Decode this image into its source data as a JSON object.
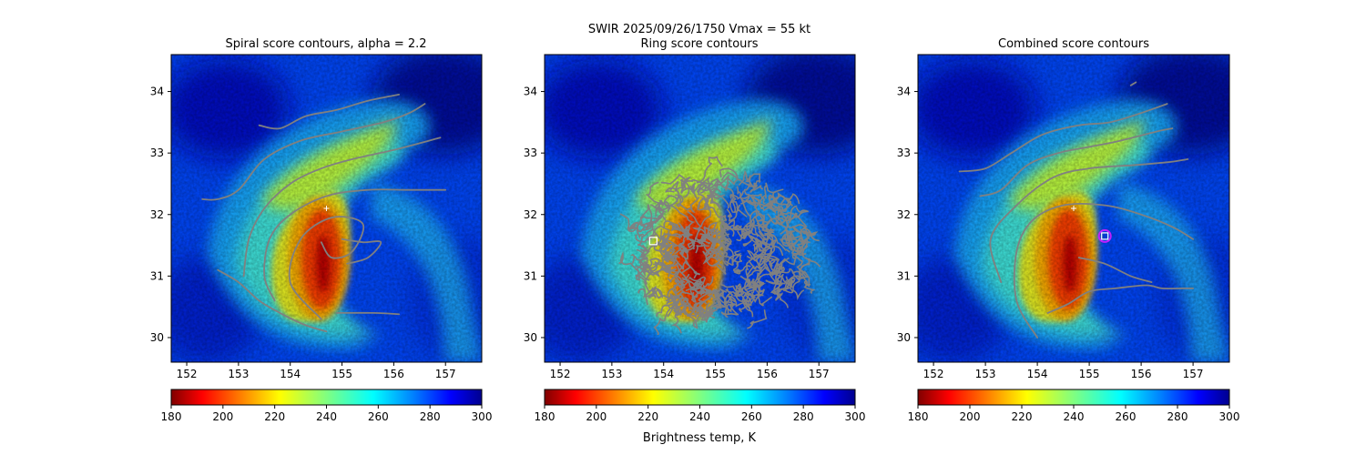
{
  "suptitle": {
    "line1": "SWIR  2025/09/26/1750    Vmax = 55 kt",
    "line2": "Ring score contours"
  },
  "colorbar": {
    "label": "Brightness temp, K",
    "ticks": [
      180,
      200,
      220,
      240,
      260,
      280,
      300
    ],
    "range": [
      180,
      300
    ],
    "colormap": "jet_r"
  },
  "chart_data": [
    {
      "type": "heatmap",
      "title": "Spiral score contours, alpha =  2.2",
      "xlim": [
        151.7,
        157.7
      ],
      "ylim": [
        29.6,
        34.6
      ],
      "xticks": [
        152,
        153,
        154,
        155,
        156,
        157
      ],
      "yticks": [
        30,
        31,
        32,
        33,
        34
      ],
      "grid": false,
      "contour_color": "#808080",
      "marker": {
        "type": "plus",
        "x": 154.7,
        "y": 32.1,
        "color": "#ffffff"
      },
      "contours": [
        [
          [
            153.4,
            33.45
          ],
          [
            153.8,
            33.4
          ],
          [
            154.3,
            33.6
          ],
          [
            154.9,
            33.7
          ],
          [
            155.5,
            33.85
          ],
          [
            156.1,
            33.95
          ]
        ],
        [
          [
            152.3,
            32.25
          ],
          [
            152.6,
            32.25
          ],
          [
            153.0,
            32.4
          ],
          [
            153.5,
            32.9
          ],
          [
            154.2,
            33.2
          ],
          [
            155.0,
            33.35
          ],
          [
            155.8,
            33.5
          ],
          [
            156.3,
            33.65
          ],
          [
            156.6,
            33.8
          ]
        ],
        [
          [
            153.1,
            31.0
          ],
          [
            153.2,
            31.6
          ],
          [
            153.5,
            32.1
          ],
          [
            154.0,
            32.5
          ],
          [
            154.6,
            32.75
          ],
          [
            155.2,
            32.9
          ],
          [
            156.0,
            33.05
          ],
          [
            156.9,
            33.25
          ]
        ],
        [
          [
            153.7,
            30.6
          ],
          [
            153.5,
            31.0
          ],
          [
            153.6,
            31.6
          ],
          [
            154.0,
            32.0
          ],
          [
            154.7,
            32.3
          ],
          [
            155.5,
            32.4
          ],
          [
            156.3,
            32.4
          ],
          [
            157.0,
            32.4
          ]
        ],
        [
          [
            154.6,
            30.3
          ],
          [
            154.0,
            30.9
          ],
          [
            154.2,
            31.6
          ],
          [
            154.8,
            31.95
          ],
          [
            155.4,
            31.85
          ],
          [
            155.2,
            31.4
          ],
          [
            154.8,
            31.3
          ],
          [
            154.6,
            31.55
          ]
        ],
        [
          [
            155.0,
            31.6
          ],
          [
            155.4,
            31.55
          ],
          [
            155.75,
            31.55
          ],
          [
            155.5,
            31.3
          ],
          [
            155.1,
            31.2
          ]
        ],
        [
          [
            152.6,
            31.1
          ],
          [
            153.0,
            30.9
          ],
          [
            153.4,
            30.6
          ],
          [
            153.8,
            30.4
          ],
          [
            154.3,
            30.2
          ],
          [
            154.7,
            30.1
          ]
        ],
        [
          [
            154.9,
            30.4
          ],
          [
            155.6,
            30.4
          ],
          [
            156.1,
            30.38
          ]
        ]
      ]
    },
    {
      "type": "heatmap",
      "title": "Ring score contours",
      "xlim": [
        151.7,
        157.7
      ],
      "ylim": [
        29.6,
        34.6
      ],
      "xticks": [
        152,
        153,
        154,
        155,
        156,
        157
      ],
      "yticks": [
        30,
        31,
        32,
        33,
        34
      ],
      "grid": false,
      "contour_color": "#808080",
      "marker": {
        "type": "square",
        "x": 153.8,
        "y": 31.57,
        "color": "#ffffff"
      },
      "ring_region": {
        "cx": 155.1,
        "cy": 31.45,
        "rx": 3.5,
        "ry": 1.15
      }
    },
    {
      "type": "heatmap",
      "title": "Combined score contours",
      "xlim": [
        151.7,
        157.7
      ],
      "ylim": [
        29.6,
        34.6
      ],
      "xticks": [
        152,
        153,
        154,
        155,
        156,
        157
      ],
      "yticks": [
        30,
        31,
        32,
        33,
        34
      ],
      "grid": false,
      "contour_color": "#808080",
      "marker": {
        "type": "plus",
        "x": 154.7,
        "y": 32.1,
        "color": "#ffffff"
      },
      "center_marker": {
        "type": "square-in-circle",
        "x": 155.3,
        "y": 31.65,
        "circle_color": "#c020ff",
        "square_color": "#ffffff"
      },
      "contours": [
        [
          [
            155.8,
            34.1
          ],
          [
            155.9,
            34.15
          ]
        ],
        [
          [
            152.5,
            32.7
          ],
          [
            153.0,
            32.75
          ],
          [
            153.5,
            33.0
          ],
          [
            154.1,
            33.3
          ],
          [
            154.8,
            33.45
          ],
          [
            155.4,
            33.5
          ],
          [
            156.0,
            33.65
          ],
          [
            156.5,
            33.8
          ]
        ],
        [
          [
            152.9,
            32.3
          ],
          [
            153.3,
            32.4
          ],
          [
            153.8,
            32.8
          ],
          [
            154.4,
            33.0
          ],
          [
            155.0,
            33.1
          ],
          [
            155.6,
            33.2
          ],
          [
            156.3,
            33.35
          ],
          [
            156.6,
            33.4
          ]
        ],
        [
          [
            153.3,
            30.9
          ],
          [
            153.1,
            31.6
          ],
          [
            153.6,
            32.15
          ],
          [
            154.3,
            32.6
          ],
          [
            155.0,
            32.75
          ],
          [
            155.8,
            32.8
          ],
          [
            156.5,
            32.85
          ],
          [
            156.9,
            32.9
          ]
        ],
        [
          [
            154.0,
            30.0
          ],
          [
            153.6,
            30.6
          ],
          [
            153.6,
            31.4
          ],
          [
            153.9,
            31.9
          ],
          [
            154.5,
            32.15
          ],
          [
            155.3,
            32.15
          ],
          [
            156.0,
            32.0
          ],
          [
            156.6,
            31.8
          ],
          [
            157.0,
            31.6
          ]
        ],
        [
          [
            154.2,
            30.4
          ],
          [
            154.6,
            30.55
          ],
          [
            155.0,
            30.75
          ],
          [
            155.5,
            30.8
          ],
          [
            156.1,
            30.85
          ],
          [
            156.4,
            30.8
          ],
          [
            156.8,
            30.8
          ],
          [
            157.0,
            30.8
          ]
        ],
        [
          [
            154.8,
            31.3
          ],
          [
            155.3,
            31.2
          ],
          [
            155.8,
            31.0
          ],
          [
            156.2,
            30.9
          ]
        ]
      ]
    }
  ]
}
